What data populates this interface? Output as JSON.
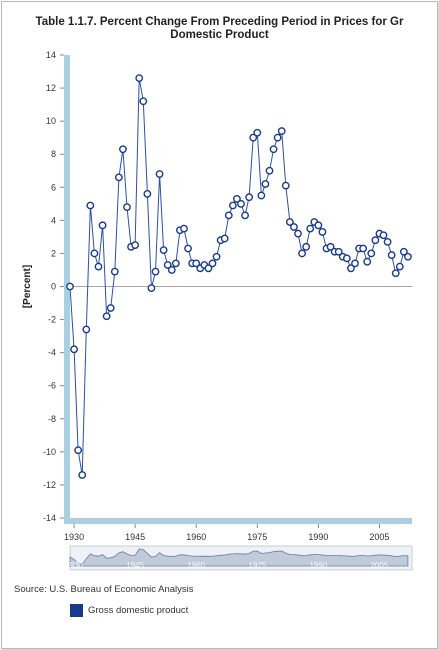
{
  "title_line1": "Table 1.1.7. Percent Change From Preceding Period in Prices for Gr",
  "title_line2": "Domestic Product",
  "source": "Source: U.S. Bureau of Economic Analysis",
  "colors": {
    "line": "#2f4fa3",
    "marker_stroke": "#173a8c",
    "marker_fill": "#ffffff",
    "axis_band": "#a9cfe0",
    "zero_line": "#888888",
    "navigator_fill": "#9aa9bf",
    "legend_swatch": "#173a8c"
  },
  "chart_data": {
    "type": "line",
    "ylabel": "[Percent]",
    "xlabel": "",
    "ylim": [
      -14,
      14
    ],
    "xlim": [
      1929,
      2013
    ],
    "y_ticks": [
      "-14",
      "-12",
      "-10",
      "-8",
      "-6",
      "-4",
      "-2",
      "0",
      "2",
      "4",
      "6",
      "8",
      "10",
      "12",
      "14"
    ],
    "x_ticks": [
      "1930",
      "1945",
      "1960",
      "1975",
      "1990",
      "2005"
    ],
    "grid": false,
    "legend_position": "bottom-left",
    "series": [
      {
        "name": "Gross domestic product",
        "x": [
          1929,
          1930,
          1931,
          1932,
          1933,
          1934,
          1935,
          1936,
          1937,
          1938,
          1939,
          1940,
          1941,
          1942,
          1943,
          1944,
          1945,
          1946,
          1947,
          1948,
          1949,
          1950,
          1951,
          1952,
          1953,
          1954,
          1955,
          1956,
          1957,
          1958,
          1959,
          1960,
          1961,
          1962,
          1963,
          1964,
          1965,
          1966,
          1967,
          1968,
          1969,
          1970,
          1971,
          1972,
          1973,
          1974,
          1975,
          1976,
          1977,
          1978,
          1979,
          1980,
          1981,
          1982,
          1983,
          1984,
          1985,
          1986,
          1987,
          1988,
          1989,
          1990,
          1991,
          1992,
          1993,
          1994,
          1995,
          1996,
          1997,
          1998,
          1999,
          2000,
          2001,
          2002,
          2003,
          2004,
          2005,
          2006,
          2007,
          2008,
          2009,
          2010,
          2011,
          2012
        ],
        "values": [
          0.0,
          -3.8,
          -9.9,
          -11.4,
          -2.6,
          4.9,
          2.0,
          1.2,
          3.7,
          -1.8,
          -1.3,
          0.9,
          6.6,
          8.3,
          4.8,
          2.4,
          2.5,
          12.6,
          11.2,
          5.6,
          -0.1,
          0.9,
          6.8,
          2.2,
          1.3,
          1.0,
          1.4,
          3.4,
          3.5,
          2.3,
          1.4,
          1.4,
          1.1,
          1.3,
          1.1,
          1.4,
          1.8,
          2.8,
          2.9,
          4.3,
          4.9,
          5.3,
          5.0,
          4.3,
          5.4,
          9.0,
          9.3,
          5.5,
          6.2,
          7.0,
          8.3,
          9.0,
          9.4,
          6.1,
          3.9,
          3.6,
          3.2,
          2.0,
          2.4,
          3.5,
          3.9,
          3.7,
          3.3,
          2.3,
          2.4,
          2.1,
          2.1,
          1.8,
          1.7,
          1.1,
          1.4,
          2.3,
          2.3,
          1.5,
          2.0,
          2.8,
          3.2,
          3.1,
          2.7,
          1.9,
          0.8,
          1.2,
          2.1,
          1.8
        ]
      }
    ],
    "navigator_x_labels": [
      "1930",
      "1945",
      "1960",
      "1975",
      "1990",
      "2005"
    ]
  },
  "legend": {
    "label": "Gross domestic product"
  }
}
